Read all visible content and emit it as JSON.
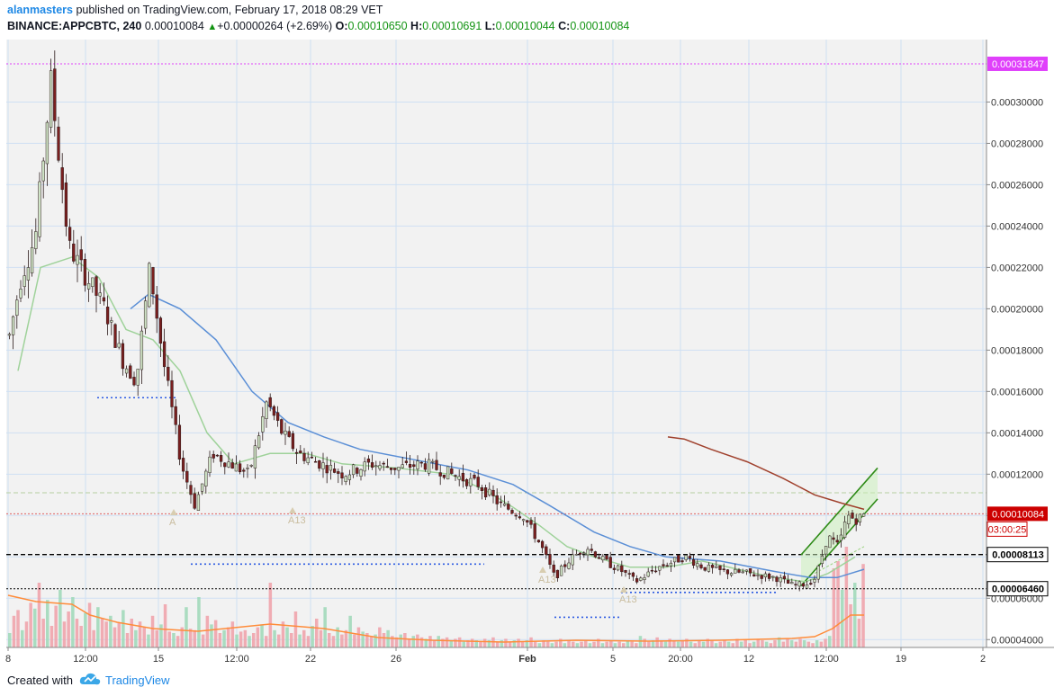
{
  "header": {
    "user": "alanmasters",
    "published": "published on TradingView.com, February 17, 2018 08:29 VET",
    "symbol": "BINANCE:APPCBTC, 240",
    "last": "0.00010084",
    "change": "+0.00000264 (+2.69%)",
    "o_label": "O:",
    "o_val": "0.00010650",
    "h_label": "H:",
    "h_val": "0.00010691",
    "l_label": "L:",
    "l_val": "0.00010044",
    "c_label": "C:",
    "c_val": "0.00010084"
  },
  "footer": {
    "created": "Created with",
    "brand": "TradingView"
  },
  "chart_data": {
    "type": "candlestick",
    "title": "BINANCE:APPCBTC, 240",
    "ylim": [
      3.62e-05,
      0.0003302
    ],
    "y_ticks": [
      "0.00004000",
      "0.00006000",
      "0.00008000",
      "0.00010000",
      "0.00012000",
      "0.00014000",
      "0.00016000",
      "0.00018000",
      "0.00020000",
      "0.00022000",
      "0.00024000",
      "0.00026000",
      "0.00028000",
      "0.00030000"
    ],
    "x_ticks": [
      "8",
      "12:00",
      "15",
      "12:00",
      "22",
      "26",
      "Feb",
      "5",
      "20:00",
      "12",
      "12:00",
      "19",
      "2"
    ],
    "x_tick_bold": "Feb",
    "price_labels": [
      {
        "text": "0.00031847",
        "value": 0.00031847,
        "color": "#e040fb"
      },
      {
        "text": "0.00010084",
        "value": 0.00010084,
        "color": "#cc0000"
      },
      {
        "text": "03:00:25",
        "value": 9e-05,
        "color": "#cc0000"
      },
      {
        "text": "0.00008113",
        "value": 8.113e-05,
        "color": "#000000"
      },
      {
        "text": "0.00006460",
        "value": 6.46e-05,
        "color": "#000000"
      }
    ],
    "annotations": [
      "A",
      "A13",
      "A13",
      "A13"
    ],
    "close_path": [
      [
        8,
        0.000185
      ],
      [
        22,
        0.000215
      ],
      [
        38,
        0.000235
      ],
      [
        55,
        0.00031
      ],
      [
        75,
        0.00023
      ],
      [
        95,
        0.000215
      ],
      [
        115,
        0.0002
      ],
      [
        135,
        0.000175
      ],
      [
        150,
        0.000165
      ],
      [
        165,
        0.00022
      ],
      [
        180,
        0.000175
      ],
      [
        200,
        0.000125
      ],
      [
        215,
        0.000105
      ],
      [
        235,
        0.00013
      ],
      [
        255,
        0.000125
      ],
      [
        275,
        0.00012
      ],
      [
        295,
        0.000155
      ],
      [
        312,
        0.00014
      ],
      [
        330,
        0.00013
      ],
      [
        350,
        0.000126
      ],
      [
        380,
        0.00012
      ],
      [
        410,
        0.000125
      ],
      [
        440,
        0.000123
      ],
      [
        470,
        0.000125
      ],
      [
        500,
        0.00012
      ],
      [
        530,
        0.000115
      ],
      [
        555,
        0.000105
      ],
      [
        580,
        0.0001
      ],
      [
        600,
        8.5e-05
      ],
      [
        615,
        7e-05
      ],
      [
        630,
        7.8e-05
      ],
      [
        650,
        8.5e-05
      ],
      [
        670,
        7.8e-05
      ],
      [
        690,
        7.3e-05
      ],
      [
        705,
        6.8e-05
      ],
      [
        730,
        7.5e-05
      ],
      [
        760,
        8e-05
      ],
      [
        780,
        7.5e-05
      ],
      [
        800,
        7.3e-05
      ],
      [
        830,
        7.2e-05
      ],
      [
        860,
        7e-05
      ],
      [
        880,
        6.6e-05
      ],
      [
        895,
        6.7e-05
      ],
      [
        905,
        7e-05
      ],
      [
        918,
        9e-05
      ],
      [
        930,
        8.5e-05
      ],
      [
        940,
        0.0001
      ],
      [
        950,
        9.8e-05
      ],
      [
        960,
        0.00010084
      ]
    ],
    "sma_green": [
      [
        20,
        0.00017
      ],
      [
        45,
        0.00022
      ],
      [
        80,
        0.000225
      ],
      [
        110,
        0.000215
      ],
      [
        140,
        0.00019
      ],
      [
        170,
        0.000185
      ],
      [
        200,
        0.00017
      ],
      [
        230,
        0.00014
      ],
      [
        260,
        0.000125
      ],
      [
        300,
        0.00013
      ],
      [
        340,
        0.00013
      ],
      [
        380,
        0.000125
      ],
      [
        440,
        0.000123
      ],
      [
        500,
        0.00012
      ],
      [
        540,
        0.000112
      ],
      [
        570,
        0.000104
      ],
      [
        600,
        9.5e-05
      ],
      [
        630,
        8.5e-05
      ],
      [
        660,
        8e-05
      ],
      [
        700,
        7.5e-05
      ],
      [
        740,
        7.5e-05
      ],
      [
        780,
        7.8e-05
      ],
      [
        820,
        7.4e-05
      ],
      [
        860,
        7e-05
      ],
      [
        895,
        6.8e-05
      ],
      [
        920,
        7.2e-05
      ],
      [
        950,
        8e-05
      ]
    ],
    "sma_blue": [
      [
        145,
        0.0002
      ],
      [
        165,
        0.000207
      ],
      [
        200,
        0.0002
      ],
      [
        240,
        0.000185
      ],
      [
        280,
        0.00016
      ],
      [
        320,
        0.000145
      ],
      [
        360,
        0.000138
      ],
      [
        400,
        0.000132
      ],
      [
        460,
        0.000127
      ],
      [
        520,
        0.000122
      ],
      [
        570,
        0.000115
      ],
      [
        610,
        0.000105
      ],
      [
        660,
        9.2e-05
      ],
      [
        700,
        8.5e-05
      ],
      [
        740,
        8e-05
      ],
      [
        800,
        7.8e-05
      ],
      [
        860,
        7.3e-05
      ],
      [
        900,
        7e-05
      ],
      [
        930,
        7e-05
      ],
      [
        960,
        7.4e-05
      ]
    ],
    "sma_brown": [
      [
        742,
        0.000138
      ],
      [
        760,
        0.000137
      ],
      [
        790,
        0.000132
      ],
      [
        830,
        0.000126
      ],
      [
        870,
        0.000118
      ],
      [
        905,
        0.00011
      ],
      [
        935,
        0.000106
      ],
      [
        960,
        0.000103
      ]
    ],
    "channel": {
      "lower": [
        [
          890,
          6.6e-05
        ],
        [
          975,
          0.000108
        ]
      ],
      "upper": [
        [
          890,
          8.1e-05
        ],
        [
          975,
          0.000123
        ]
      ],
      "mid": [
        [
          905,
          7.2e-05
        ],
        [
          960,
          8.5e-05
        ]
      ]
    },
    "h_lines": [
      {
        "value": 0.00031847,
        "color": "#e040fb",
        "style": "dotted"
      },
      {
        "value": 0.000111,
        "color": "#b5cfa0",
        "style": "dashed"
      },
      {
        "value": 0.00010084,
        "color": "#e06060",
        "style": "dotted"
      },
      {
        "value": 8.113e-05,
        "color": "#000000",
        "style": "dashed"
      },
      {
        "value": 6.46e-05,
        "color": "#000000",
        "style": "dotted"
      }
    ],
    "blue_dotted_lines": [
      {
        "x1": 108,
        "x2": 195,
        "value": 0.000157
      },
      {
        "x1": 212,
        "x2": 538,
        "value": 7.65e-05
      },
      {
        "x1": 690,
        "x2": 862,
        "value": 6.28e-05
      },
      {
        "x1": 616,
        "x2": 690,
        "value": 5.08e-05
      }
    ],
    "volume_bars": [
      10,
      22,
      26,
      12,
      18,
      31,
      27,
      45,
      20,
      33,
      15,
      29,
      40,
      18,
      25,
      35,
      20,
      15,
      24,
      31,
      12,
      28,
      20,
      18,
      22,
      14,
      17,
      26,
      10,
      20,
      12,
      18,
      14,
      9,
      22,
      12,
      16,
      30,
      11,
      10,
      8,
      14,
      28,
      13,
      12,
      35,
      9,
      22,
      16,
      19,
      10,
      12,
      14,
      18,
      9,
      11,
      12,
      8,
      10,
      14,
      16,
      8,
      45,
      12,
      9,
      18,
      14,
      10,
      25,
      9,
      12,
      8,
      15,
      20,
      12,
      28,
      10,
      8,
      14,
      9,
      12,
      22,
      9,
      14,
      11,
      10,
      8,
      9,
      14,
      10,
      12,
      8,
      7,
      9,
      10,
      6,
      8,
      9,
      7,
      6,
      8,
      5,
      8,
      6,
      7,
      5,
      6,
      7,
      4,
      5,
      6,
      5,
      4,
      6,
      5,
      7,
      4,
      5,
      6,
      4,
      5,
      6,
      4,
      5,
      7,
      4,
      3,
      5,
      4,
      3,
      4,
      6,
      3,
      5,
      4,
      3,
      4,
      5,
      3,
      4,
      6,
      3,
      4,
      5,
      3,
      4,
      3,
      5,
      4,
      3,
      8,
      6,
      4,
      5,
      7,
      5,
      4,
      6,
      5,
      4,
      5,
      6,
      4,
      3,
      5,
      4,
      6,
      5,
      3,
      4,
      5,
      4,
      3,
      6,
      4,
      5,
      3,
      4,
      6,
      5,
      4,
      3,
      5,
      7,
      4,
      6,
      5,
      4,
      6,
      5,
      4,
      3,
      5,
      4,
      6,
      8,
      55,
      60,
      40,
      70,
      30,
      45,
      20,
      58
    ]
  }
}
